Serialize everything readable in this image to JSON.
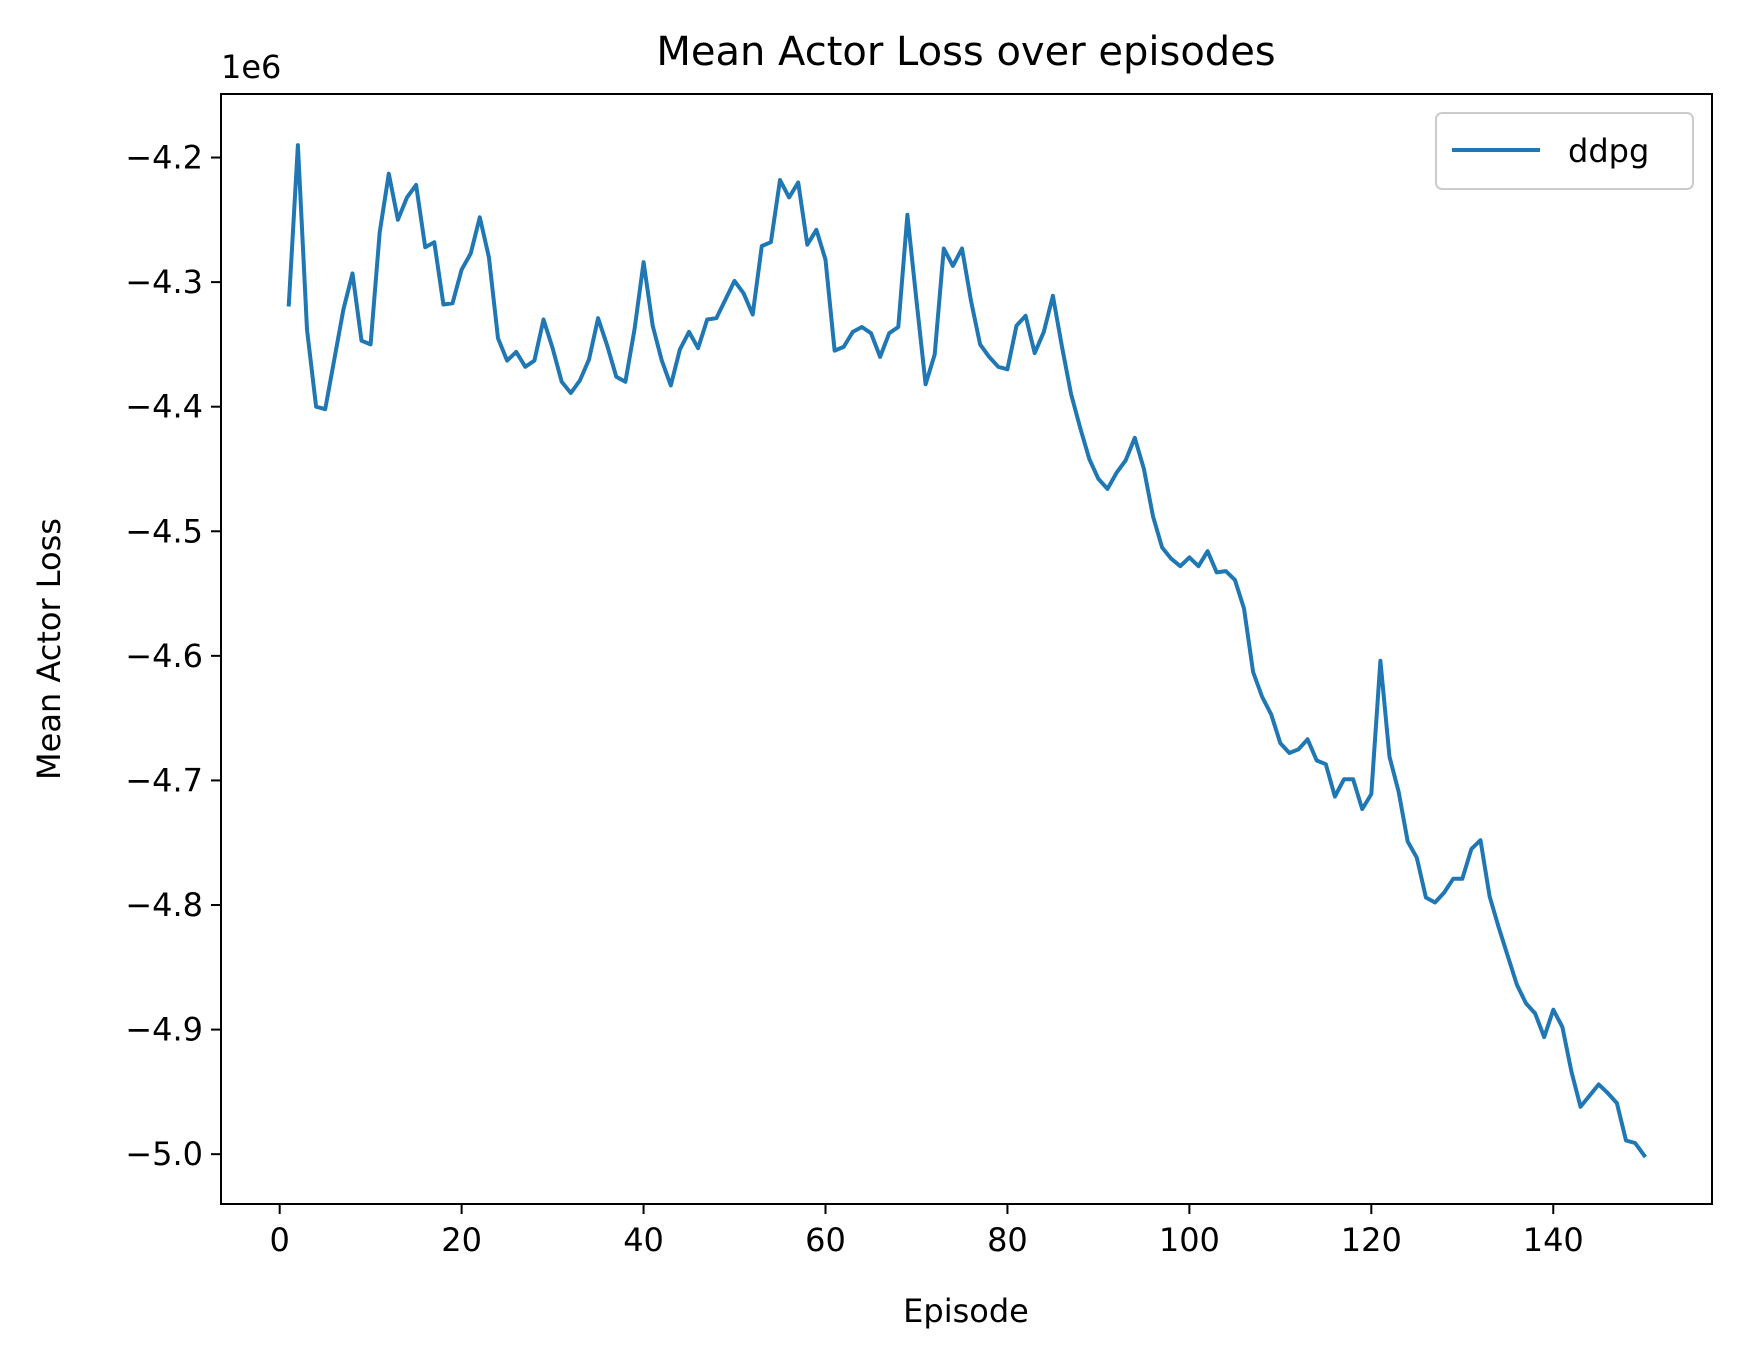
{
  "chart_data": {
    "type": "line",
    "title": "Mean Actor Loss over episodes",
    "xlabel": "Episode",
    "ylabel": "Mean Actor Loss",
    "y_offset_label": "1e6",
    "xlim": [
      -6.45,
      157.45
    ],
    "ylim": [
      -5.04,
      -4.149
    ],
    "x_ticks": [
      0,
      20,
      40,
      60,
      80,
      100,
      120,
      140
    ],
    "y_ticks": [
      -4.2,
      -4.3,
      -4.4,
      -4.5,
      -4.6,
      -4.7,
      -4.8,
      -4.9,
      -5.0
    ],
    "x_tick_labels": [
      "0",
      "20",
      "40",
      "60",
      "80",
      "100",
      "120",
      "140"
    ],
    "y_tick_labels": [
      "−4.2",
      "−4.3",
      "−4.4",
      "−4.5",
      "−4.6",
      "−4.7",
      "−4.8",
      "−4.9",
      "−5.0"
    ],
    "grid": false,
    "legend_position": "top-right",
    "series": [
      {
        "name": "ddpg",
        "color": "#1f77b4",
        "x": [
          1,
          2,
          3,
          4,
          5,
          6,
          7,
          8,
          9,
          10,
          11,
          12,
          13,
          14,
          15,
          16,
          17,
          18,
          19,
          20,
          21,
          22,
          23,
          24,
          25,
          26,
          27,
          28,
          29,
          30,
          31,
          32,
          33,
          34,
          35,
          36,
          37,
          38,
          39,
          40,
          41,
          42,
          43,
          44,
          45,
          46,
          47,
          48,
          49,
          50,
          51,
          52,
          53,
          54,
          55,
          56,
          57,
          58,
          59,
          60,
          61,
          62,
          63,
          64,
          65,
          66,
          67,
          68,
          69,
          70,
          71,
          72,
          73,
          74,
          75,
          76,
          77,
          78,
          79,
          80,
          81,
          82,
          83,
          84,
          85,
          86,
          87,
          88,
          89,
          90,
          91,
          92,
          93,
          94,
          95,
          96,
          97,
          98,
          99,
          100,
          101,
          102,
          103,
          104,
          105,
          106,
          107,
          108,
          109,
          110,
          111,
          112,
          113,
          114,
          115,
          116,
          117,
          118,
          119,
          120,
          121,
          122,
          123,
          124,
          125,
          126,
          127,
          128,
          129,
          130,
          131,
          132,
          133,
          134,
          135,
          136,
          137,
          138,
          139,
          140,
          141,
          142,
          143,
          144,
          145,
          146,
          147,
          148,
          149,
          150
        ],
        "y": [
          -4.318,
          -4.19,
          -4.338,
          -4.4,
          -4.402,
          -4.362,
          -4.322,
          -4.293,
          -4.347,
          -4.35,
          -4.26,
          -4.213,
          -4.25,
          -4.232,
          -4.222,
          -4.272,
          -4.268,
          -4.318,
          -4.317,
          -4.29,
          -4.277,
          -4.248,
          -4.28,
          -4.345,
          -4.363,
          -4.356,
          -4.368,
          -4.363,
          -4.33,
          -4.353,
          -4.38,
          -4.389,
          -4.379,
          -4.362,
          -4.329,
          -4.351,
          -4.376,
          -4.38,
          -4.338,
          -4.284,
          -4.335,
          -4.363,
          -4.383,
          -4.354,
          -4.34,
          -4.353,
          -4.33,
          -4.329,
          -4.314,
          -4.299,
          -4.309,
          -4.326,
          -4.271,
          -4.268,
          -4.218,
          -4.232,
          -4.22,
          -4.27,
          -4.258,
          -4.282,
          -4.355,
          -4.352,
          -4.34,
          -4.336,
          -4.341,
          -4.36,
          -4.341,
          -4.336,
          -4.246,
          -4.315,
          -4.382,
          -4.358,
          -4.273,
          -4.287,
          -4.273,
          -4.315,
          -4.35,
          -4.36,
          -4.368,
          -4.37,
          -4.335,
          -4.327,
          -4.357,
          -4.34,
          -4.311,
          -4.352,
          -4.39,
          -4.417,
          -4.442,
          -4.458,
          -4.466,
          -4.453,
          -4.443,
          -4.425,
          -4.45,
          -4.488,
          -4.513,
          -4.522,
          -4.528,
          -4.521,
          -4.528,
          -4.516,
          -4.533,
          -4.532,
          -4.539,
          -4.562,
          -4.613,
          -4.633,
          -4.647,
          -4.67,
          -4.678,
          -4.675,
          -4.667,
          -4.684,
          -4.687,
          -4.713,
          -4.699,
          -4.699,
          -4.723,
          -4.711,
          -4.604,
          -4.681,
          -4.709,
          -4.749,
          -4.762,
          -4.794,
          -4.798,
          -4.79,
          -4.779,
          -4.779,
          -4.755,
          -4.748,
          -4.793,
          -4.818,
          -4.841,
          -4.864,
          -4.879,
          -4.887,
          -4.906,
          -4.884,
          -4.898,
          -4.934,
          -4.962,
          -4.953,
          -4.944,
          -4.951,
          -4.959,
          -4.989,
          -4.991,
          -5.001
        ]
      }
    ]
  }
}
